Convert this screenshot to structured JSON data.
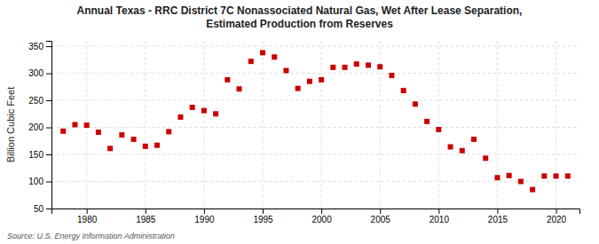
{
  "chart_data": {
    "type": "scatter",
    "title": "Annual Texas - RRC District 7C Nonassociated Natural Gas, Wet After Lease Separation,\nEstimated Production from Reserves",
    "ylabel": "Billion Cubic Feet",
    "annotations": [
      "Source: U.S. Energy Information Administration"
    ],
    "x": [
      1978,
      1979,
      1980,
      1981,
      1982,
      1983,
      1984,
      1985,
      1986,
      1987,
      1988,
      1989,
      1990,
      1991,
      1992,
      1993,
      1994,
      1995,
      1996,
      1997,
      1998,
      1999,
      2000,
      2001,
      2002,
      2003,
      2004,
      2005,
      2006,
      2007,
      2008,
      2009,
      2010,
      2011,
      2012,
      2013,
      2014,
      2015,
      2016,
      2017,
      2018,
      2019,
      2020,
      2021
    ],
    "values": [
      193,
      205,
      204,
      191,
      161,
      186,
      178,
      165,
      167,
      192,
      219,
      237,
      231,
      225,
      288,
      271,
      322,
      338,
      330,
      305,
      272,
      285,
      288,
      311,
      311,
      317,
      315,
      312,
      296,
      268,
      243,
      211,
      196,
      164,
      157,
      178,
      143,
      107,
      111,
      100,
      85,
      110,
      110,
      110
    ],
    "color": "#cc0000",
    "marker": "square",
    "xlim": [
      1977,
      2022
    ],
    "xticks": [
      1980,
      1985,
      1990,
      1995,
      2000,
      2005,
      2010,
      2015,
      2020
    ],
    "ylim": [
      50,
      360
    ],
    "yticks": [
      50,
      100,
      150,
      200,
      250,
      300,
      350
    ],
    "grid": true
  }
}
